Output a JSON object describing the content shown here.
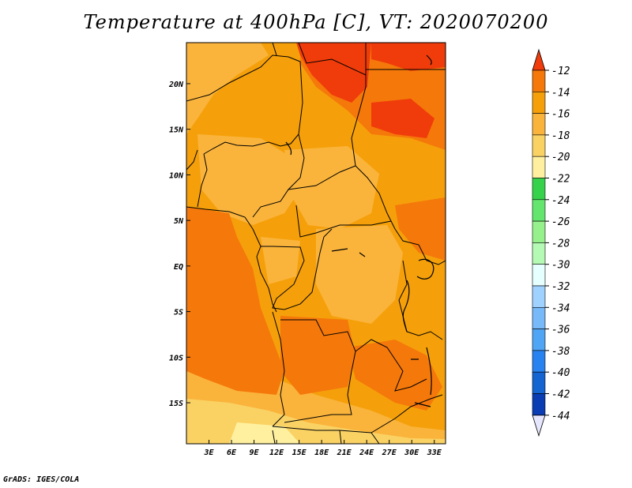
{
  "title": "Temperature at 400hPa [C], VT: 2020070200",
  "footer": "GrADS: IGES/COLA",
  "map": {
    "lon_range": [
      0,
      34.5
    ],
    "lat_range": [
      -19.5,
      24.5
    ],
    "x_ticks": [
      "3E",
      "6E",
      "9E",
      "12E",
      "15E",
      "18E",
      "21E",
      "24E",
      "27E",
      "30E",
      "33E"
    ],
    "x_tick_values": [
      3,
      6,
      9,
      12,
      15,
      18,
      21,
      24,
      27,
      30,
      33
    ],
    "y_ticks": [
      "20N",
      "15N",
      "10N",
      "5N",
      "EQ",
      "5S",
      "10S",
      "15S"
    ],
    "y_tick_values": [
      20,
      15,
      10,
      5,
      0,
      -5,
      -10,
      -15
    ]
  },
  "colorbar": {
    "labels": [
      "-12",
      "-14",
      "-16",
      "-18",
      "-20",
      "-22",
      "-24",
      "-26",
      "-28",
      "-30",
      "-32",
      "-34",
      "-36",
      "-38",
      "-40",
      "-42",
      "-44"
    ],
    "colors": [
      "#f03c0a",
      "#f5780a",
      "#f5a00a",
      "#fab43c",
      "#fad264",
      "#fff0a0",
      "#37d24b",
      "#64e66e",
      "#96f08c",
      "#b4fab4",
      "#e6ffff",
      "#a0d2ff",
      "#78b9fa",
      "#50a5f5",
      "#2882f0",
      "#1464d2",
      "#0a3cb4",
      "#000a78",
      "#e6e6ff"
    ]
  }
}
